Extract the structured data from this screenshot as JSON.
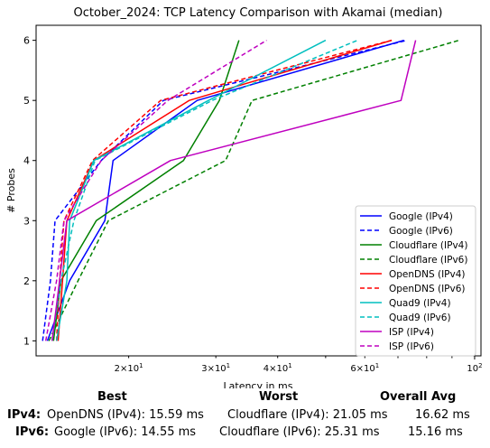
{
  "chart_data": {
    "type": "line",
    "title": "October_2024: TCP Latency Comparison with Akamai (median)",
    "xlabel": "Latency in ms",
    "ylabel": "# Probes",
    "xscale": "log",
    "xlim": [
      13.0,
      103.0
    ],
    "ylim": [
      0.75,
      6.25
    ],
    "x_major_ticks": [
      {
        "value": 100,
        "label": "10^2"
      }
    ],
    "x_minor_ticks": [
      {
        "value": 20,
        "label": "2×10^1"
      },
      {
        "value": 30,
        "label": "3×10^1"
      },
      {
        "value": 40,
        "label": "4×10^1"
      },
      {
        "value": 60,
        "label": "6×10^1"
      }
    ],
    "y_ticks": [
      1,
      2,
      3,
      4,
      5,
      6
    ],
    "grid": false,
    "legend": "lower-right",
    "series": [
      {
        "name": "Google (IPv4)",
        "color": "#0000ff",
        "dash": "solid",
        "points": [
          [
            13.7,
            1
          ],
          [
            15.2,
            2
          ],
          [
            17.9,
            3
          ],
          [
            18.6,
            4
          ],
          [
            27.5,
            5
          ],
          [
            72,
            6
          ]
        ]
      },
      {
        "name": "Google (IPv6)",
        "color": "#0000ff",
        "dash": "dashed",
        "points": [
          [
            13.4,
            1
          ],
          [
            13.9,
            2
          ],
          [
            14.2,
            3
          ],
          [
            17.6,
            4
          ],
          [
            23.5,
            5
          ],
          [
            73,
            6
          ]
        ]
      },
      {
        "name": "Cloudflare (IPv4)",
        "color": "#008000",
        "dash": "solid",
        "points": [
          [
            14.1,
            1
          ],
          [
            14.6,
            2
          ],
          [
            17.2,
            3
          ],
          [
            25.8,
            4
          ],
          [
            30.5,
            5
          ],
          [
            33.4,
            6
          ]
        ]
      },
      {
        "name": "Cloudflare (IPv6)",
        "color": "#008000",
        "dash": "dashed",
        "points": [
          [
            13.8,
            1
          ],
          [
            15.8,
            2
          ],
          [
            18.2,
            3
          ],
          [
            31.4,
            4
          ],
          [
            35.5,
            5
          ],
          [
            93,
            6
          ]
        ]
      },
      {
        "name": "OpenDNS (IPv4)",
        "color": "#ff0000",
        "dash": "solid",
        "points": [
          [
            14.4,
            1
          ],
          [
            14.7,
            2
          ],
          [
            15.0,
            3
          ],
          [
            17.0,
            4
          ],
          [
            26.5,
            5
          ],
          [
            68,
            6
          ]
        ]
      },
      {
        "name": "OpenDNS (IPv6)",
        "color": "#ff0000",
        "dash": "dashed",
        "points": [
          [
            14.3,
            1
          ],
          [
            14.5,
            2
          ],
          [
            14.8,
            3
          ],
          [
            16.9,
            4
          ],
          [
            23.2,
            5
          ],
          [
            68,
            6
          ]
        ]
      },
      {
        "name": "Quad9 (IPv4)",
        "color": "#00bfbf",
        "dash": "solid",
        "points": [
          [
            14.3,
            1
          ],
          [
            15.0,
            2
          ],
          [
            15.2,
            3
          ],
          [
            17.0,
            4
          ],
          [
            29.0,
            5
          ],
          [
            50,
            6
          ]
        ]
      },
      {
        "name": "Quad9 (IPv6)",
        "color": "#00bfbf",
        "dash": "dashed",
        "points": [
          [
            14.0,
            1
          ],
          [
            14.6,
            2
          ],
          [
            15.5,
            3
          ],
          [
            17.1,
            4
          ],
          [
            29.5,
            5
          ],
          [
            58,
            6
          ]
        ]
      },
      {
        "name": "ISP (IPv4)",
        "color": "#bf00bf",
        "dash": "solid",
        "points": [
          [
            14.0,
            1
          ],
          [
            14.5,
            2
          ],
          [
            15.0,
            3
          ],
          [
            24.3,
            4
          ],
          [
            71,
            5
          ],
          [
            76,
            6
          ]
        ]
      },
      {
        "name": "ISP (IPv6)",
        "color": "#bf00bf",
        "dash": "dashed",
        "points": [
          [
            13.6,
            1
          ],
          [
            14.3,
            2
          ],
          [
            14.8,
            3
          ],
          [
            17.6,
            4
          ],
          [
            24.0,
            5
          ],
          [
            38,
            6
          ]
        ]
      }
    ]
  },
  "summary": {
    "headers": {
      "best": "Best",
      "worst": "Worst",
      "avg": "Overall Avg"
    },
    "rows": [
      {
        "label": "IPv4:",
        "best": "OpenDNS (IPv4): 15.59 ms",
        "worst": "Cloudflare (IPv4): 21.05 ms",
        "avg": "16.62 ms"
      },
      {
        "label": "IPv6:",
        "best": "Google (IPv6): 14.55 ms",
        "worst": "Cloudflare (IPv6): 25.31 ms",
        "avg": "15.16 ms"
      }
    ]
  }
}
